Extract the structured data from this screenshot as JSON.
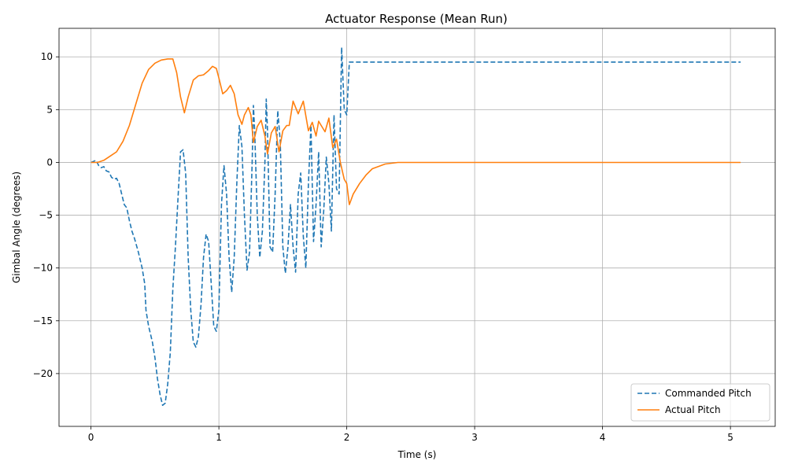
{
  "chart_data": {
    "type": "line",
    "title": "Actuator Response (Mean Run)",
    "xlabel": "Time (s)",
    "ylabel": "Gimbal Angle (degrees)",
    "xlim": [
      -0.25,
      5.35
    ],
    "ylim": [
      -25,
      12.7
    ],
    "xticks": [
      0,
      1,
      2,
      3,
      4,
      5
    ],
    "xtick_labels": [
      "0",
      "1",
      "2",
      "3",
      "4",
      "5"
    ],
    "yticks": [
      -20,
      -15,
      -10,
      -5,
      0,
      5,
      10
    ],
    "ytick_labels": [
      "−20",
      "−15",
      "−10",
      "−5",
      "0",
      "5",
      "10"
    ],
    "grid": true,
    "legend_position": "lower-right",
    "series": [
      {
        "name": "Commanded Pitch",
        "color": "#1f77b4",
        "style": "dashed",
        "points": [
          [
            0.0,
            0.0
          ],
          [
            0.04,
            0.2
          ],
          [
            0.06,
            -0.3
          ],
          [
            0.08,
            -0.5
          ],
          [
            0.1,
            -0.4
          ],
          [
            0.12,
            -0.8
          ],
          [
            0.14,
            -0.9
          ],
          [
            0.16,
            -1.4
          ],
          [
            0.18,
            -1.6
          ],
          [
            0.2,
            -1.5
          ],
          [
            0.22,
            -2.0
          ],
          [
            0.24,
            -3.0
          ],
          [
            0.26,
            -4.0
          ],
          [
            0.28,
            -4.3
          ],
          [
            0.3,
            -5.5
          ],
          [
            0.32,
            -6.5
          ],
          [
            0.34,
            -7.2
          ],
          [
            0.37,
            -8.5
          ],
          [
            0.4,
            -10.0
          ],
          [
            0.42,
            -11.5
          ],
          [
            0.43,
            -14.0
          ],
          [
            0.45,
            -15.5
          ],
          [
            0.48,
            -17.0
          ],
          [
            0.5,
            -18.5
          ],
          [
            0.52,
            -20.5
          ],
          [
            0.54,
            -22.0
          ],
          [
            0.56,
            -23.0
          ],
          [
            0.58,
            -22.8
          ],
          [
            0.6,
            -21.0
          ],
          [
            0.62,
            -18.0
          ],
          [
            0.64,
            -12.0
          ],
          [
            0.66,
            -8.0
          ],
          [
            0.68,
            -3.5
          ],
          [
            0.7,
            1.0
          ],
          [
            0.72,
            1.2
          ],
          [
            0.74,
            -1.0
          ],
          [
            0.76,
            -9.0
          ],
          [
            0.78,
            -14.0
          ],
          [
            0.8,
            -17.0
          ],
          [
            0.82,
            -17.5
          ],
          [
            0.84,
            -16.5
          ],
          [
            0.86,
            -13.5
          ],
          [
            0.88,
            -9.0
          ],
          [
            0.9,
            -6.8
          ],
          [
            0.92,
            -7.5
          ],
          [
            0.94,
            -11.5
          ],
          [
            0.96,
            -15.5
          ],
          [
            0.98,
            -16.0
          ],
          [
            1.0,
            -14.0
          ],
          [
            1.02,
            -4.0
          ],
          [
            1.04,
            -0.3
          ],
          [
            1.06,
            -3.0
          ],
          [
            1.08,
            -9.0
          ],
          [
            1.1,
            -12.3
          ],
          [
            1.12,
            -9.0
          ],
          [
            1.14,
            -2.0
          ],
          [
            1.16,
            3.5
          ],
          [
            1.18,
            1.5
          ],
          [
            1.2,
            -5.0
          ],
          [
            1.22,
            -10.2
          ],
          [
            1.24,
            -8.5
          ],
          [
            1.26,
            0.0
          ],
          [
            1.27,
            5.4
          ],
          [
            1.28,
            3.0
          ],
          [
            1.3,
            -5.0
          ],
          [
            1.32,
            -9.0
          ],
          [
            1.34,
            -6.5
          ],
          [
            1.36,
            0.0
          ],
          [
            1.37,
            6.0
          ],
          [
            1.38,
            3.0
          ],
          [
            1.4,
            -8.0
          ],
          [
            1.42,
            -8.5
          ],
          [
            1.44,
            -3.0
          ],
          [
            1.46,
            4.9
          ],
          [
            1.48,
            2.0
          ],
          [
            1.5,
            -8.0
          ],
          [
            1.52,
            -10.5
          ],
          [
            1.54,
            -8.0
          ],
          [
            1.56,
            -4.0
          ],
          [
            1.58,
            -8.0
          ],
          [
            1.6,
            -10.4
          ],
          [
            1.62,
            -3.0
          ],
          [
            1.64,
            -1.0
          ],
          [
            1.66,
            -7.0
          ],
          [
            1.68,
            -10.0
          ],
          [
            1.7,
            -2.0
          ],
          [
            1.72,
            3.5
          ],
          [
            1.74,
            -7.5
          ],
          [
            1.76,
            -4.0
          ],
          [
            1.78,
            1.0
          ],
          [
            1.8,
            -8.0
          ],
          [
            1.82,
            -4.5
          ],
          [
            1.84,
            0.5
          ],
          [
            1.86,
            -2.0
          ],
          [
            1.88,
            -6.5
          ],
          [
            1.9,
            4.5
          ],
          [
            1.92,
            -2.5
          ],
          [
            1.94,
            -3.0
          ],
          [
            1.96,
            10.9
          ],
          [
            1.98,
            5.0
          ],
          [
            2.0,
            4.5
          ],
          [
            2.02,
            9.5
          ],
          [
            5.08,
            9.5
          ]
        ]
      },
      {
        "name": "Actual Pitch",
        "color": "#ff7f0e",
        "style": "solid",
        "points": [
          [
            0.0,
            0.0
          ],
          [
            0.05,
            0.0
          ],
          [
            0.1,
            0.2
          ],
          [
            0.15,
            0.6
          ],
          [
            0.2,
            1.0
          ],
          [
            0.25,
            2.0
          ],
          [
            0.3,
            3.5
          ],
          [
            0.35,
            5.5
          ],
          [
            0.4,
            7.5
          ],
          [
            0.45,
            8.8
          ],
          [
            0.5,
            9.4
          ],
          [
            0.55,
            9.7
          ],
          [
            0.6,
            9.8
          ],
          [
            0.64,
            9.8
          ],
          [
            0.67,
            8.5
          ],
          [
            0.7,
            6.2
          ],
          [
            0.73,
            4.7
          ],
          [
            0.76,
            6.2
          ],
          [
            0.8,
            7.8
          ],
          [
            0.84,
            8.2
          ],
          [
            0.88,
            8.3
          ],
          [
            0.92,
            8.7
          ],
          [
            0.95,
            9.1
          ],
          [
            0.98,
            8.9
          ],
          [
            1.0,
            8.0
          ],
          [
            1.03,
            6.5
          ],
          [
            1.06,
            6.8
          ],
          [
            1.09,
            7.3
          ],
          [
            1.12,
            6.5
          ],
          [
            1.15,
            4.5
          ],
          [
            1.18,
            3.6
          ],
          [
            1.2,
            4.5
          ],
          [
            1.23,
            5.2
          ],
          [
            1.25,
            4.5
          ],
          [
            1.27,
            1.9
          ],
          [
            1.3,
            3.4
          ],
          [
            1.33,
            4.0
          ],
          [
            1.36,
            2.5
          ],
          [
            1.38,
            0.8
          ],
          [
            1.41,
            2.8
          ],
          [
            1.44,
            3.4
          ],
          [
            1.47,
            1.0
          ],
          [
            1.5,
            3.0
          ],
          [
            1.53,
            3.5
          ],
          [
            1.55,
            3.5
          ],
          [
            1.58,
            5.8
          ],
          [
            1.62,
            4.6
          ],
          [
            1.66,
            5.8
          ],
          [
            1.7,
            3.0
          ],
          [
            1.73,
            3.8
          ],
          [
            1.76,
            2.5
          ],
          [
            1.78,
            3.9
          ],
          [
            1.8,
            3.5
          ],
          [
            1.83,
            2.9
          ],
          [
            1.86,
            4.2
          ],
          [
            1.89,
            1.4
          ],
          [
            1.92,
            2.2
          ],
          [
            1.95,
            0.0
          ],
          [
            1.98,
            -1.6
          ],
          [
            2.0,
            -2.0
          ],
          [
            2.02,
            -4.0
          ],
          [
            2.05,
            -3.0
          ],
          [
            2.1,
            -2.0
          ],
          [
            2.15,
            -1.2
          ],
          [
            2.2,
            -0.6
          ],
          [
            2.3,
            -0.15
          ],
          [
            2.4,
            0.0
          ],
          [
            5.08,
            0.0
          ]
        ]
      }
    ]
  }
}
